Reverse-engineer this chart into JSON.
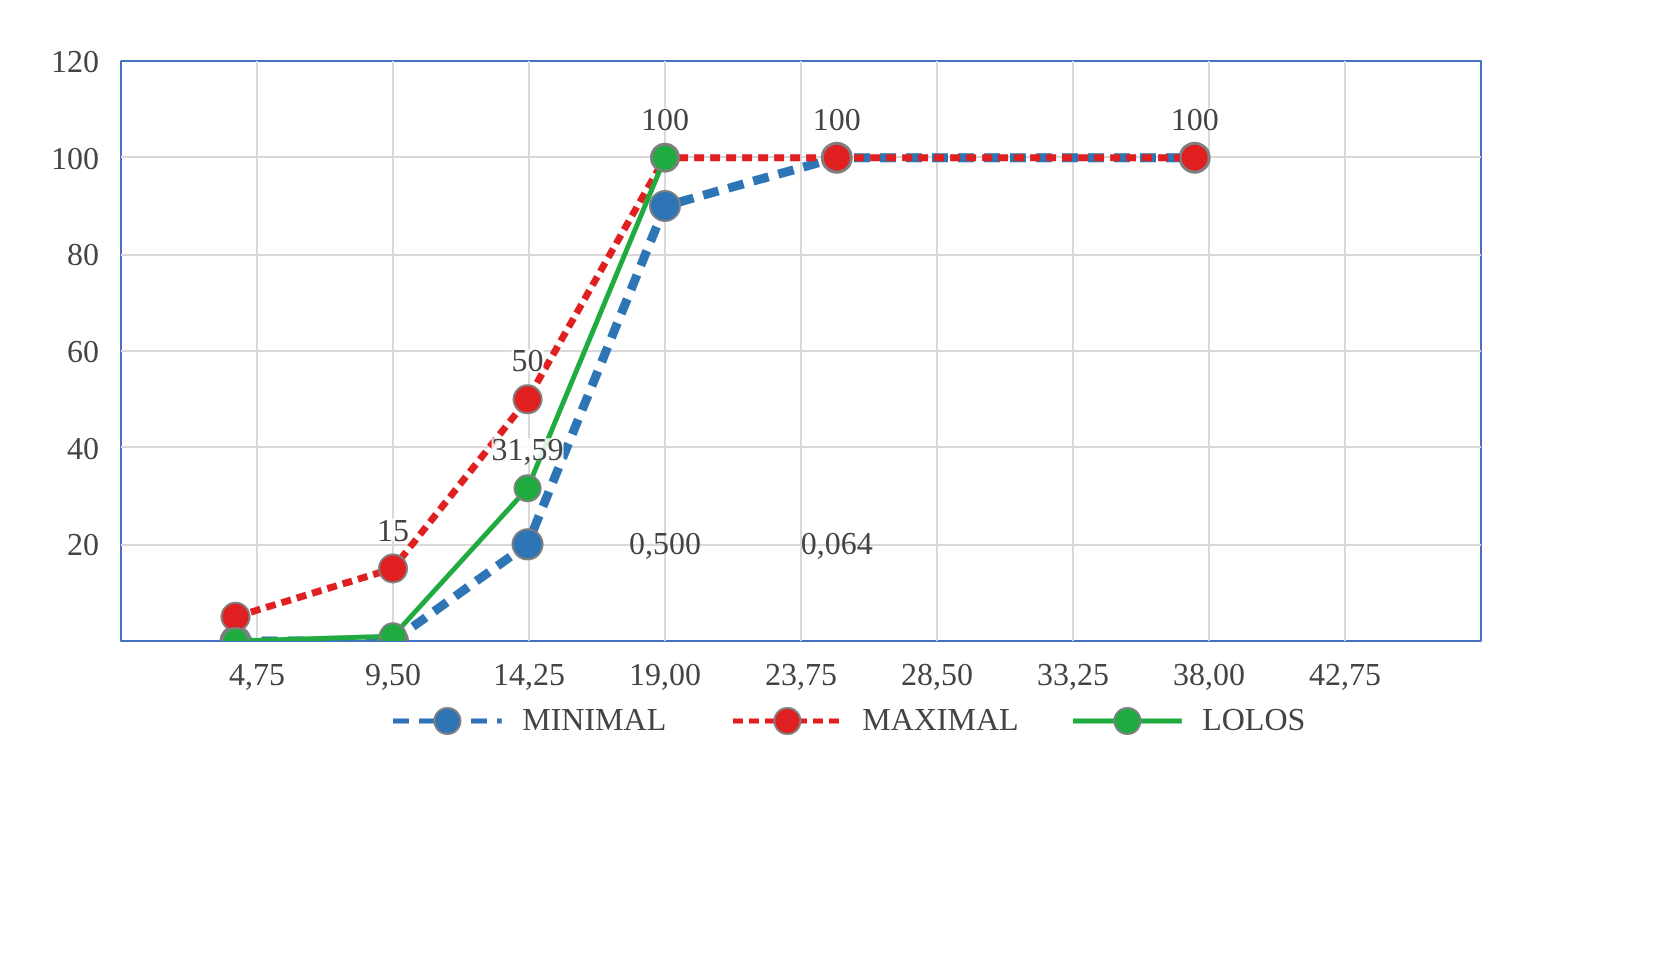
{
  "chart_data": {
    "type": "line",
    "x": [
      4,
      9.5,
      14.2,
      19,
      25,
      37.5
    ],
    "xlim": [
      0,
      47.5
    ],
    "xticks": [
      {
        "value": 4.75,
        "label": "4,75"
      },
      {
        "value": 9.5,
        "label": "9,50"
      },
      {
        "value": 14.25,
        "label": "14,25"
      },
      {
        "value": 19,
        "label": "19,00"
      },
      {
        "value": 23.75,
        "label": "23,75"
      },
      {
        "value": 28.5,
        "label": "28,50"
      },
      {
        "value": 33.25,
        "label": "33,25"
      },
      {
        "value": 38,
        "label": "38,00"
      },
      {
        "value": 42.75,
        "label": "42,75"
      }
    ],
    "ylim": [
      0,
      120
    ],
    "yticks": [
      {
        "value": 0,
        "label": null
      },
      20,
      40,
      60,
      80,
      100,
      120
    ],
    "series": [
      {
        "name": "MINIMAL",
        "color": "#2e75b6",
        "line_style": "dashed",
        "values": [
          0,
          0,
          20,
          90,
          100,
          100
        ]
      },
      {
        "name": "MAXIMAL",
        "color": "#e02020",
        "line_style": "dotted",
        "values": [
          5,
          15,
          50,
          100,
          100,
          100
        ],
        "value_labels": [
          null,
          "15",
          "50",
          "100",
          "100",
          "100"
        ]
      },
      {
        "name": "LOLOS",
        "color": "#1fab3f",
        "line_style": "solid",
        "values": [
          0,
          1,
          31.59,
          100,
          null,
          null
        ],
        "value_labels": [
          null,
          null,
          "31,59",
          null,
          null,
          null
        ]
      }
    ],
    "marker": "circle",
    "grid": true,
    "legend": "bottom",
    "annotations": [
      "0,500",
      "0,064"
    ]
  }
}
